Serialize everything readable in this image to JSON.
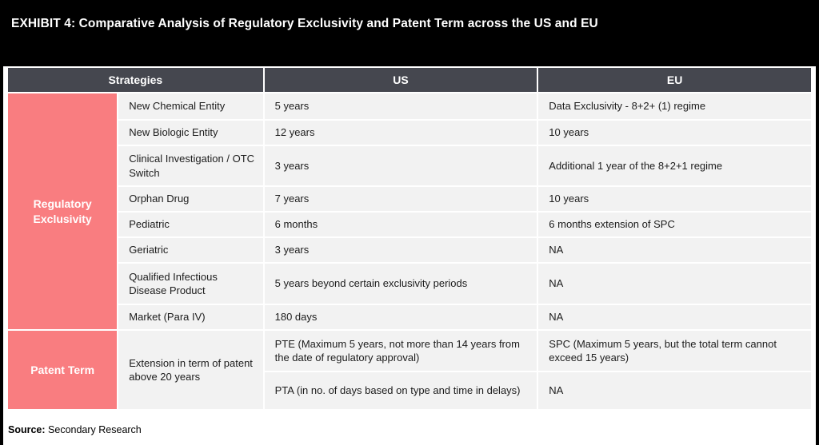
{
  "banner": {
    "title": "EXHIBIT 4: Comparative Analysis of Regulatory Exclusivity and Patent Term across the US and EU"
  },
  "table": {
    "headers": {
      "strategies": "Strategies",
      "us": "US",
      "eu": "EU"
    },
    "sections": [
      {
        "label": "Regulatory Exclusivity",
        "rows": [
          {
            "strategy": "New Chemical Entity",
            "us": "5 years",
            "eu": "Data Exclusivity - 8+2+ (1) regime"
          },
          {
            "strategy": "New Biologic Entity",
            "us": "12 years",
            "eu": "10 years"
          },
          {
            "strategy": "Clinical Investigation / OTC Switch",
            "us": "3 years",
            "eu": "Additional 1 year of the 8+2+1 regime"
          },
          {
            "strategy": "Orphan Drug",
            "us": "7 years",
            "eu": "10 years"
          },
          {
            "strategy": "Pediatric",
            "us": "6 months",
            "eu": "6 months extension of SPC"
          },
          {
            "strategy": "Geriatric",
            "us": "3 years",
            "eu": "NA"
          },
          {
            "strategy": "Qualified Infectious Disease Product",
            "us": "5 years beyond certain exclusivity periods",
            "eu": "NA"
          },
          {
            "strategy": "Market (Para IV)",
            "us": "180 days",
            "eu": "NA"
          }
        ]
      },
      {
        "label": "Patent Term",
        "sublabel": "Extension in term of patent above 20 years",
        "rows": [
          {
            "us": "PTE (Maximum 5 years, not more than 14 years from the date of regulatory approval)",
            "eu": "SPC (Maximum 5 years, but the total term cannot exceed 15 years)"
          },
          {
            "us": "PTA (in no. of days based on type and time in delays)",
            "eu": "NA"
          }
        ]
      }
    ]
  },
  "footer": {
    "source_label": "Source:",
    "source_value": "Secondary Research"
  },
  "colors": {
    "banner_bg": "#000000",
    "header_bg": "#45474F",
    "accent_pink": "#F97D80",
    "row_bg": "#F2F2F2",
    "text_dark": "#1C1C1C"
  }
}
